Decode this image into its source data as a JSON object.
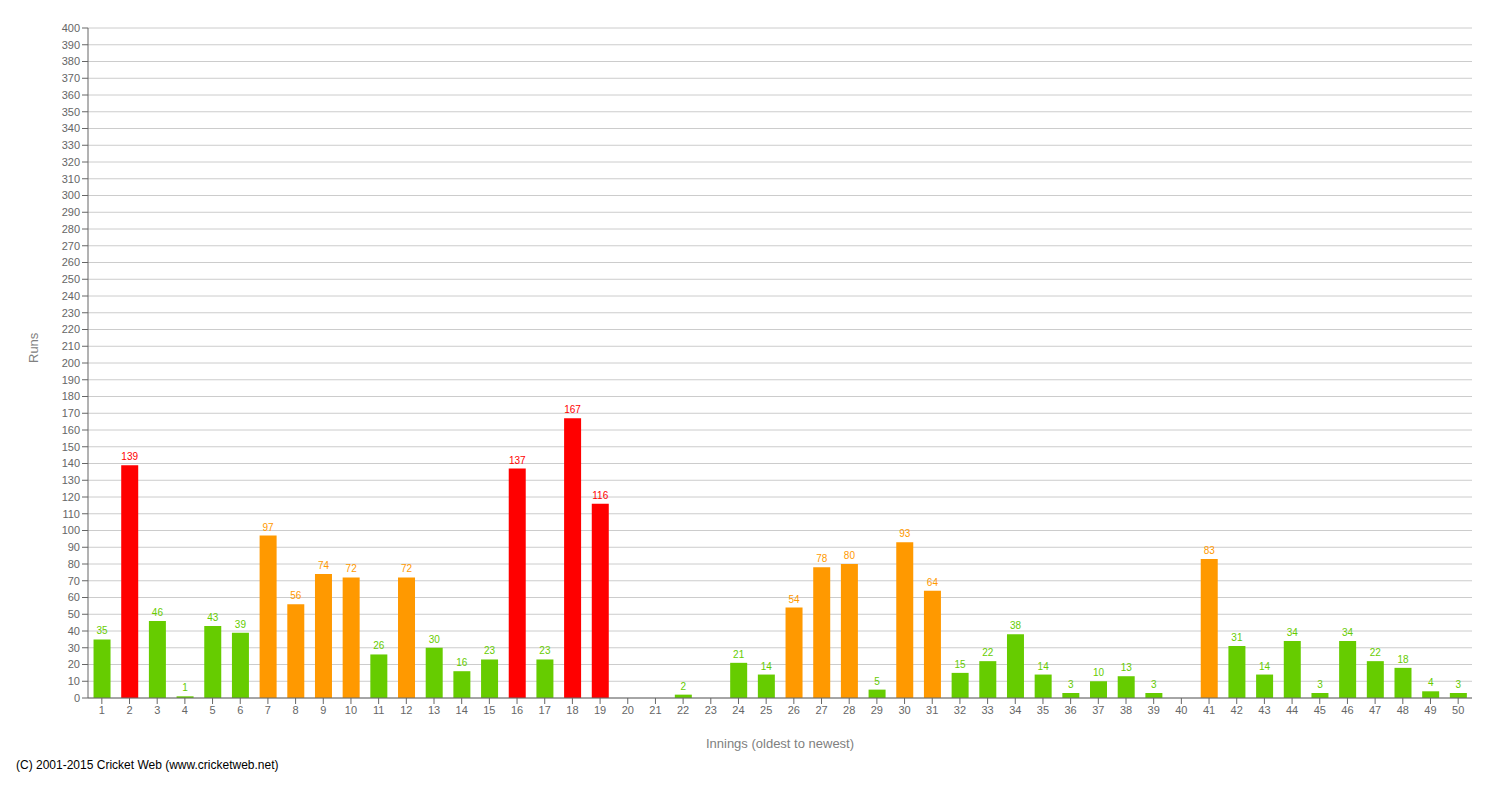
{
  "chart_data": {
    "type": "bar",
    "xlabel": "Innings (oldest to newest)",
    "ylabel": "Runs",
    "categories": [
      "1",
      "2",
      "3",
      "4",
      "5",
      "6",
      "7",
      "8",
      "9",
      "10",
      "11",
      "12",
      "13",
      "14",
      "15",
      "16",
      "17",
      "18",
      "19",
      "20",
      "21",
      "22",
      "23",
      "24",
      "25",
      "26",
      "27",
      "28",
      "29",
      "30",
      "31",
      "32",
      "33",
      "34",
      "35",
      "36",
      "37",
      "38",
      "39",
      "40",
      "41",
      "42",
      "43",
      "44",
      "45",
      "46",
      "47",
      "48",
      "49",
      "50"
    ],
    "values": [
      35,
      139,
      46,
      1,
      43,
      39,
      97,
      56,
      74,
      72,
      26,
      72,
      30,
      16,
      23,
      137,
      23,
      167,
      116,
      0,
      0,
      2,
      0,
      21,
      14,
      54,
      78,
      80,
      5,
      93,
      64,
      15,
      22,
      38,
      14,
      3,
      10,
      13,
      3,
      0,
      83,
      31,
      14,
      34,
      3,
      34,
      22,
      18,
      4,
      3
    ],
    "colors": [
      "#66cc00",
      "#ff0000",
      "#66cc00",
      "#66cc00",
      "#66cc00",
      "#66cc00",
      "#ff9900",
      "#ff9900",
      "#ff9900",
      "#ff9900",
      "#66cc00",
      "#ff9900",
      "#66cc00",
      "#66cc00",
      "#66cc00",
      "#ff0000",
      "#66cc00",
      "#ff0000",
      "#ff0000",
      "#66cc00",
      "#66cc00",
      "#66cc00",
      "#66cc00",
      "#66cc00",
      "#66cc00",
      "#ff9900",
      "#ff9900",
      "#ff9900",
      "#66cc00",
      "#ff9900",
      "#ff9900",
      "#66cc00",
      "#66cc00",
      "#66cc00",
      "#66cc00",
      "#66cc00",
      "#66cc00",
      "#66cc00",
      "#66cc00",
      "#66cc00",
      "#ff9900",
      "#66cc00",
      "#66cc00",
      "#66cc00",
      "#66cc00",
      "#66cc00",
      "#66cc00",
      "#66cc00",
      "#66cc00",
      "#66cc00"
    ],
    "ylim": [
      0,
      400
    ],
    "yticks": [
      0,
      10,
      20,
      30,
      40,
      50,
      60,
      70,
      80,
      90,
      100,
      110,
      120,
      130,
      140,
      150,
      160,
      170,
      180,
      190,
      200,
      210,
      220,
      230,
      240,
      250,
      260,
      270,
      280,
      290,
      300,
      310,
      320,
      330,
      340,
      350,
      360,
      370,
      380,
      390,
      400
    ],
    "grid": true,
    "data_labels": true,
    "annotations": [
      "(C) 2001-2015 Cricket Web (www.cricketweb.net)"
    ]
  }
}
